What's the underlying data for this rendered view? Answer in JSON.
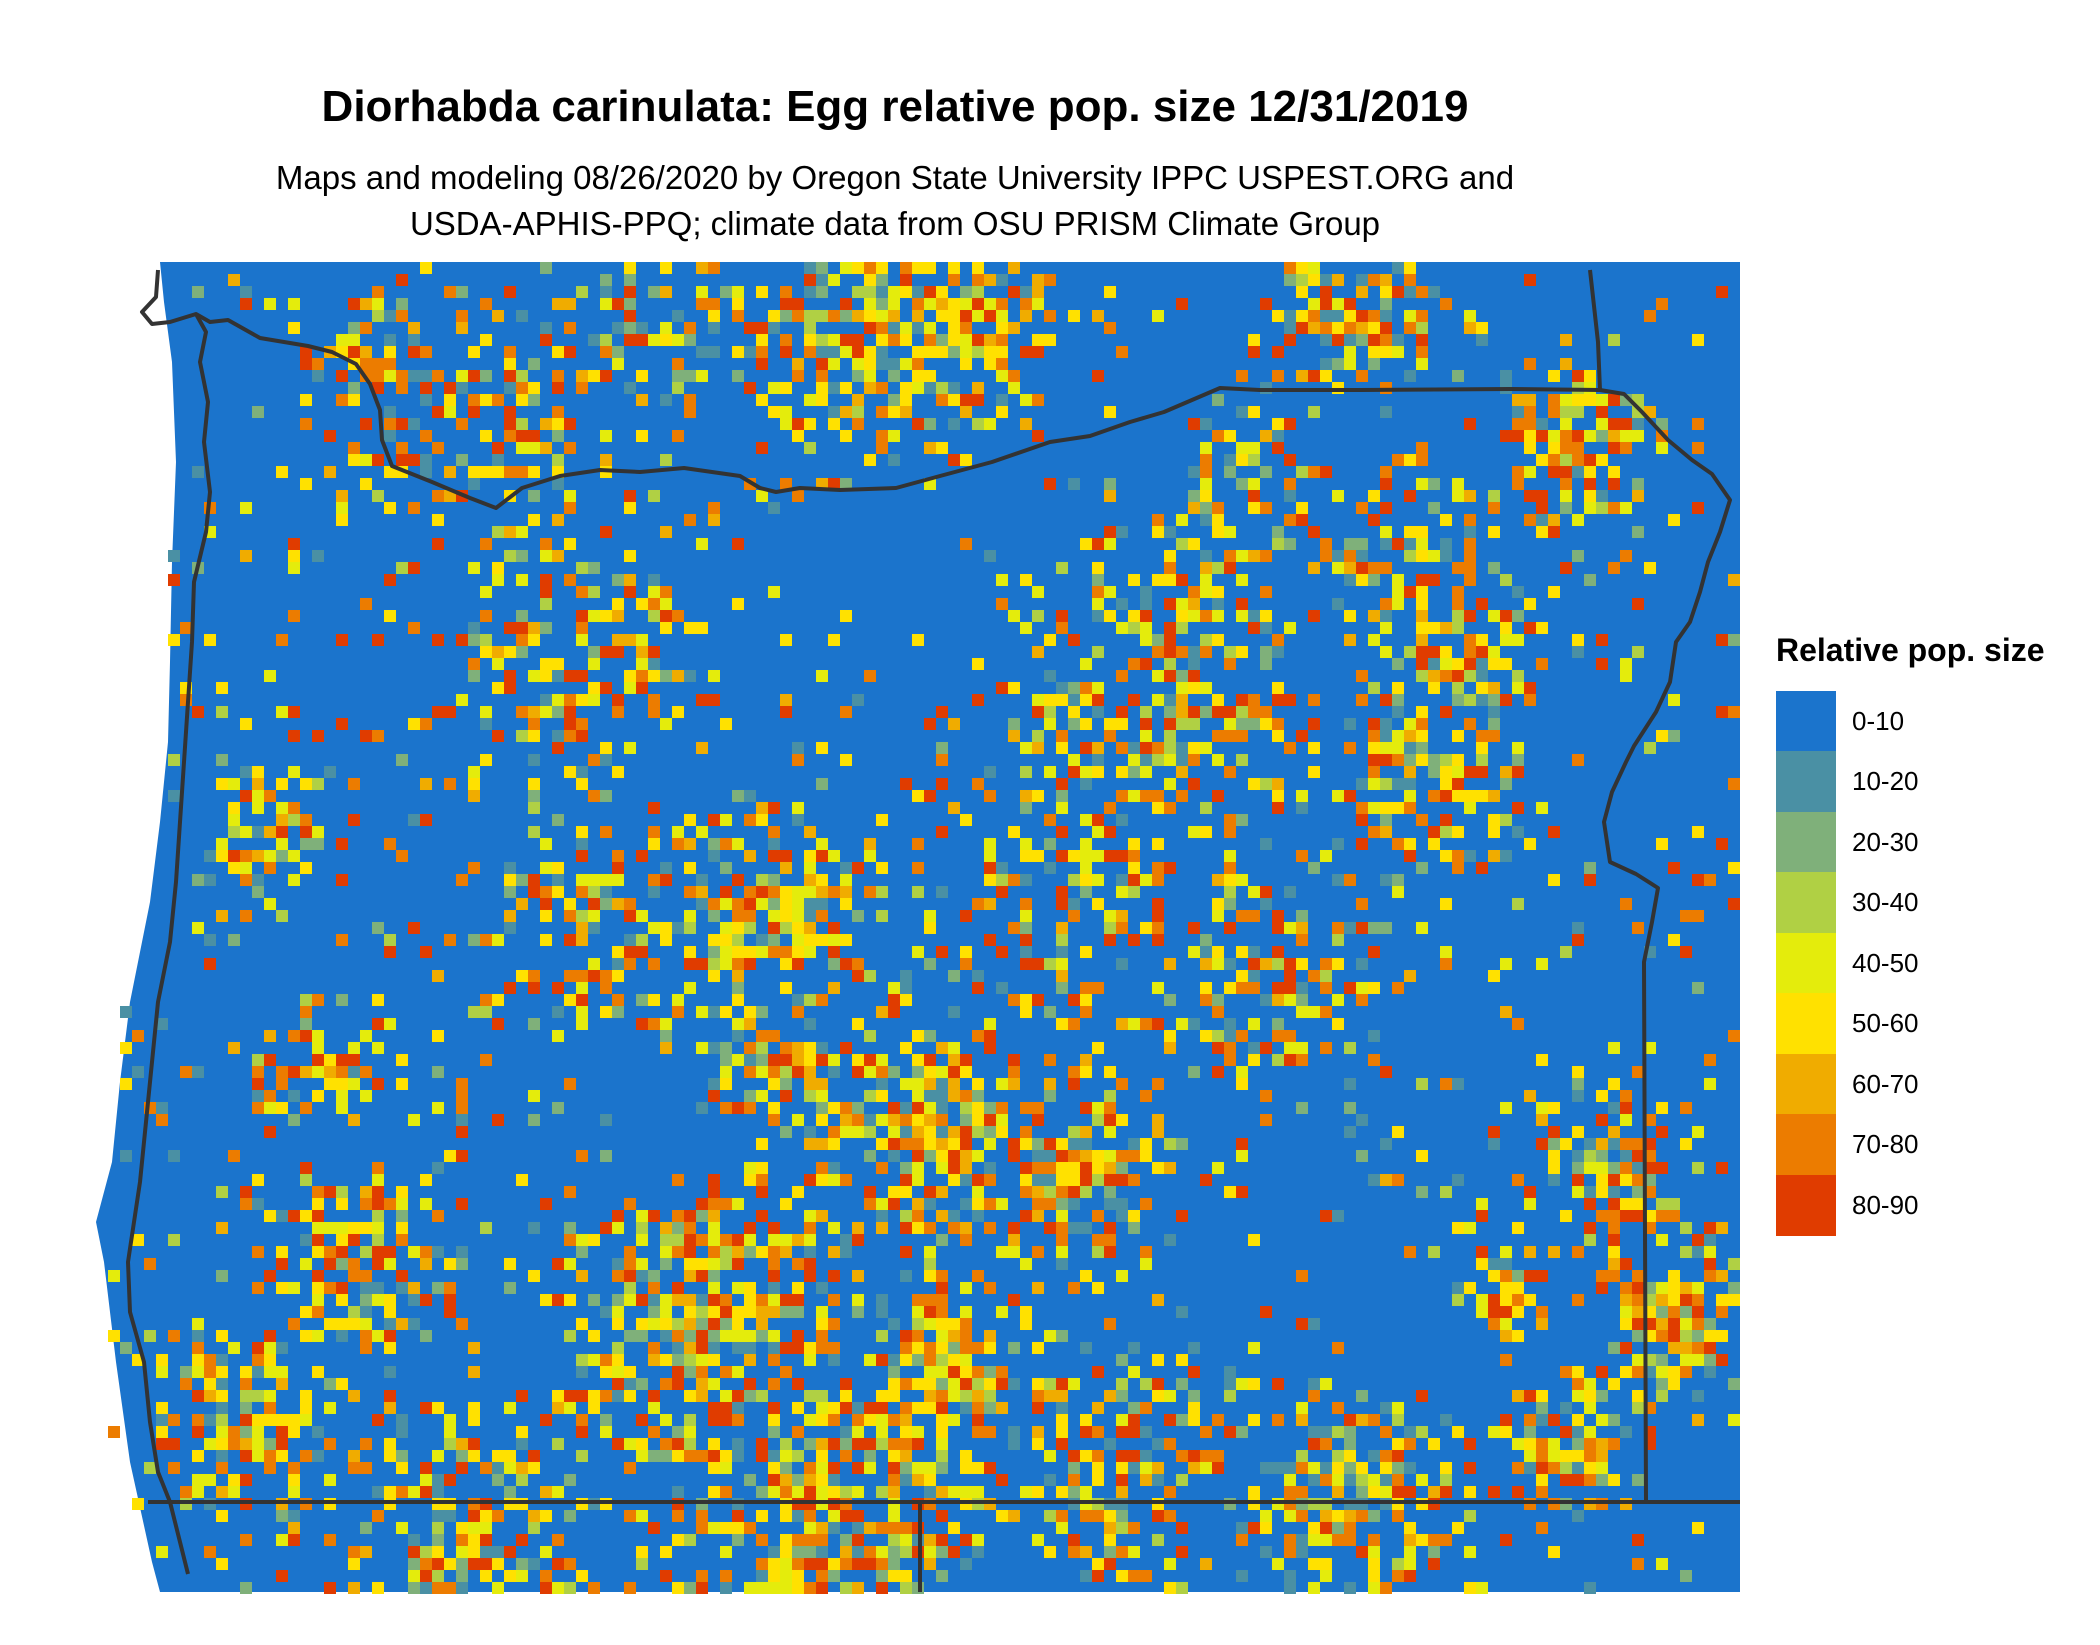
{
  "title": "Diorhabda carinulata: Egg relative pop. size 12/31/2019",
  "subtitle_line1": "Maps and modeling 08/26/2020 by Oregon State University IPPC USPEST.ORG and",
  "subtitle_line2": "USDA-APHIS-PPQ; climate data from OSU PRISM Climate Group",
  "legend": {
    "title": "Relative pop. size",
    "items": [
      {
        "label": "0-10",
        "color": "#1b74cc"
      },
      {
        "label": "10-20",
        "color": "#4a90a4"
      },
      {
        "label": "20-30",
        "color": "#7fb07a"
      },
      {
        "label": "30-40",
        "color": "#b0d044"
      },
      {
        "label": "40-50",
        "color": "#e4ec0c"
      },
      {
        "label": "50-60",
        "color": "#ffe100"
      },
      {
        "label": "60-70",
        "color": "#f0ac00"
      },
      {
        "label": "70-80",
        "color": "#ec7c00"
      },
      {
        "label": "80-90",
        "color": "#e03c00"
      }
    ]
  },
  "map": {
    "region": "Oregon",
    "background_class": "0-10",
    "hotspot_regions": [
      {
        "name": "north-central",
        "level": "70-80"
      },
      {
        "name": "central",
        "level": "80-90"
      },
      {
        "name": "southeast",
        "level": "70-80"
      },
      {
        "name": "south-central",
        "level": "70-80"
      },
      {
        "name": "northeast",
        "level": "80-90"
      }
    ]
  }
}
